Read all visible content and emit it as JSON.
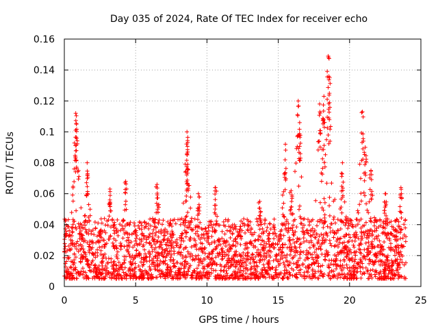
{
  "chart_data": {
    "type": "scatter",
    "title": "Day 035 of 2024, Rate Of TEC Index for receiver echo",
    "xlabel": "GPS time / hours",
    "ylabel": "ROTI / TECUs",
    "xlim": [
      0,
      25
    ],
    "ylim": [
      0,
      0.16
    ],
    "xticks": [
      0,
      5,
      10,
      15,
      20,
      25
    ],
    "xtick_labels": [
      "0",
      "5",
      "10",
      "15",
      "20",
      "25"
    ],
    "yticks": [
      0,
      0.02,
      0.04,
      0.06,
      0.08,
      0.1,
      0.12,
      0.14,
      0.16
    ],
    "ytick_labels": [
      "0",
      "0.02",
      "0.04",
      "0.06",
      "0.08",
      "0.1",
      "0.12",
      "0.14",
      "0.16"
    ],
    "grid": true,
    "marker": "plus",
    "series": [
      {
        "name": "ROTI",
        "color": "#ff0000",
        "x_range_hours": [
          0,
          23.95
        ],
        "typical_band": [
          0.005,
          0.035
        ],
        "peaks": [
          {
            "x": 0.8,
            "y": 0.112
          },
          {
            "x": 0.85,
            "y": 0.105
          },
          {
            "x": 1.6,
            "y": 0.08
          },
          {
            "x": 3.2,
            "y": 0.063
          },
          {
            "x": 4.3,
            "y": 0.068
          },
          {
            "x": 6.5,
            "y": 0.066
          },
          {
            "x": 8.6,
            "y": 0.1
          },
          {
            "x": 8.65,
            "y": 0.087
          },
          {
            "x": 9.4,
            "y": 0.06
          },
          {
            "x": 10.6,
            "y": 0.064
          },
          {
            "x": 13.7,
            "y": 0.055
          },
          {
            "x": 15.5,
            "y": 0.092
          },
          {
            "x": 15.9,
            "y": 0.062
          },
          {
            "x": 16.4,
            "y": 0.12
          },
          {
            "x": 16.5,
            "y": 0.106
          },
          {
            "x": 17.9,
            "y": 0.118
          },
          {
            "x": 18.2,
            "y": 0.123
          },
          {
            "x": 18.5,
            "y": 0.149
          },
          {
            "x": 18.6,
            "y": 0.135
          },
          {
            "x": 19.5,
            "y": 0.08
          },
          {
            "x": 20.9,
            "y": 0.113
          },
          {
            "x": 21.1,
            "y": 0.09
          },
          {
            "x": 21.5,
            "y": 0.075
          },
          {
            "x": 22.5,
            "y": 0.06
          },
          {
            "x": 23.6,
            "y": 0.064
          }
        ]
      }
    ]
  }
}
